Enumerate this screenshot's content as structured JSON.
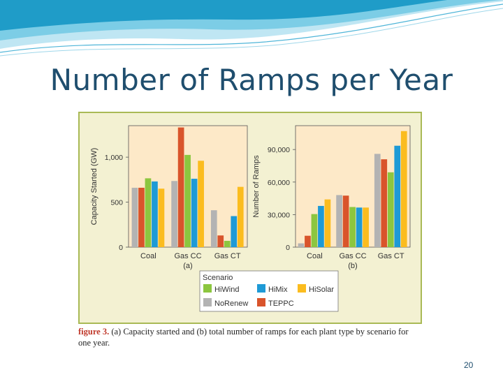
{
  "slide": {
    "title": "Number of Ramps per Year",
    "page_number": "20"
  },
  "figure": {
    "caption_label": "figure 3.",
    "caption_text": " (a) Capacity started and (b) total number of ramps for each plant type by scenario for one year."
  },
  "colors": {
    "banner_light": "#bfe6f3",
    "banner_dark": "#1f9cc8",
    "figure_bg": "#f3f1d2",
    "figure_border": "#a9b955",
    "plot_bg": "#fde9c8",
    "NoRenew": "#b3b3b3",
    "TEPPC": "#d9542b",
    "HiWind": "#8cc63f",
    "HiMix": "#1e9ad6",
    "HiSolar": "#fbbc1f"
  },
  "legend": {
    "title": "Scenario",
    "items": [
      "HiWind",
      "HiMix",
      "HiSolar",
      "NoRenew",
      "TEPPC"
    ]
  },
  "chart_data": [
    {
      "type": "bar",
      "panel_label": "(a)",
      "ylabel": "Capacity Started (GW)",
      "xlabel": "",
      "ylim": [
        0,
        1350
      ],
      "yticks": [
        0,
        500,
        1000
      ],
      "ytick_labels": [
        "0",
        "500",
        "1,000"
      ],
      "categories": [
        "Coal",
        "Gas CC",
        "Gas CT"
      ],
      "series": [
        {
          "name": "NoRenew",
          "values": [
            660,
            735,
            410
          ]
        },
        {
          "name": "TEPPC",
          "values": [
            660,
            1330,
            130
          ]
        },
        {
          "name": "HiWind",
          "values": [
            765,
            1025,
            70
          ]
        },
        {
          "name": "HiMix",
          "values": [
            730,
            760,
            345
          ]
        },
        {
          "name": "HiSolar",
          "values": [
            650,
            960,
            670
          ]
        }
      ],
      "grid": false,
      "legend_position": "bottom"
    },
    {
      "type": "bar",
      "panel_label": "(b)",
      "ylabel": "Number of Ramps",
      "xlabel": "",
      "ylim": [
        0,
        112000
      ],
      "yticks": [
        0,
        30000,
        60000,
        90000
      ],
      "ytick_labels": [
        "0",
        "30,000",
        "60,000",
        "90,000"
      ],
      "categories": [
        "Coal",
        "Gas CC",
        "Gas CT"
      ],
      "series": [
        {
          "name": "NoRenew",
          "values": [
            3500,
            48000,
            86000
          ]
        },
        {
          "name": "TEPPC",
          "values": [
            10500,
            47500,
            81000
          ]
        },
        {
          "name": "HiWind",
          "values": [
            30500,
            37000,
            69000
          ]
        },
        {
          "name": "HiMix",
          "values": [
            38000,
            36500,
            93500
          ]
        },
        {
          "name": "HiSolar",
          "values": [
            44000,
            36500,
            107000
          ]
        }
      ],
      "grid": false,
      "legend_position": "bottom"
    }
  ]
}
